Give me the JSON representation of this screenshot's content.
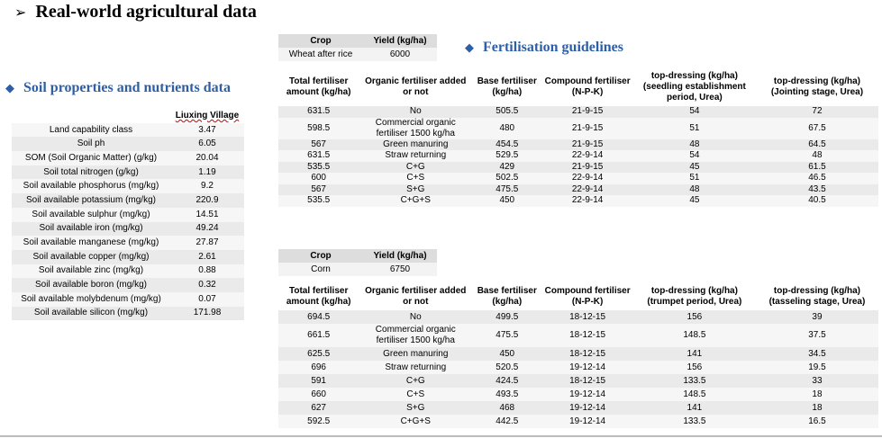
{
  "title": "Real-world agricultural data",
  "soil": {
    "heading": "Soil properties and nutrients data",
    "column": "Liuxing Village",
    "rows": [
      {
        "label": "Land capability class",
        "value": "3.47"
      },
      {
        "label": "Soil ph",
        "value": "6.05"
      },
      {
        "label": "SOM (Soil Organic Matter) (g/kg)",
        "value": "20.04"
      },
      {
        "label": "Soil total nitrogen (g/kg)",
        "value": "1.19"
      },
      {
        "label": "Soil available phosphorus (mg/kg)",
        "value": "9.2"
      },
      {
        "label": "Soil available potassium (mg/kg)",
        "value": "220.9"
      },
      {
        "label": "Soil available sulphur (mg/kg)",
        "value": "14.51"
      },
      {
        "label": "Soil available iron (mg/kg)",
        "value": "49.24"
      },
      {
        "label": "Soil available manganese (mg/kg)",
        "value": "27.87"
      },
      {
        "label": "Soil available copper (mg/kg)",
        "value": "2.61"
      },
      {
        "label": "Soil available zinc (mg/kg)",
        "value": "0.88"
      },
      {
        "label": "Soil available boron (mg/kg)",
        "value": "0.32"
      },
      {
        "label": "Soil available molybdenum (mg/kg)",
        "value": "0.07"
      },
      {
        "label": "Soil available silicon (mg/kg)",
        "value": "171.98"
      }
    ]
  },
  "fert": {
    "heading": "Fertilisation guidelines",
    "wheat": {
      "crop_header": "Crop",
      "yield_header": "Yield (kg/ha)",
      "crop": "Wheat after rice",
      "yield": "6000",
      "headers": [
        "Total fertiliser amount (kg/ha)",
        "Organic fertiliser added or not",
        "Base fertiliser (kg/ha)",
        "Compound fertiliser (N-P-K)",
        "top-dressing (kg/ha) (seedling establishment period, Urea)",
        "top-dressing (kg/ha) (Jointing stage, Urea)"
      ],
      "rows": [
        [
          "631.5",
          "No",
          "505.5",
          "21-9-15",
          "54",
          "72"
        ],
        [
          "598.5",
          "Commercial organic fertiliser 1500 kg/ha",
          "480",
          "21-9-15",
          "51",
          "67.5"
        ],
        [
          "567",
          "Green manuring",
          "454.5",
          "21-9-15",
          "48",
          "64.5"
        ],
        [
          "631.5",
          "Straw returning",
          "529.5",
          "22-9-14",
          "54",
          "48"
        ],
        [
          "535.5",
          "C+G",
          "429",
          "21-9-15",
          "45",
          "61.5"
        ],
        [
          "600",
          "C+S",
          "502.5",
          "22-9-14",
          "51",
          "46.5"
        ],
        [
          "567",
          "S+G",
          "475.5",
          "22-9-14",
          "48",
          "43.5"
        ],
        [
          "535.5",
          "C+G+S",
          "450",
          "22-9-14",
          "45",
          "40.5"
        ]
      ]
    },
    "corn": {
      "crop_header": "Crop",
      "yield_header": "Yield (kg/ha)",
      "crop": "Corn",
      "yield": "6750",
      "headers": [
        "Total fertiliser amount (kg/ha)",
        "Organic fertiliser added or not",
        "Base fertiliser (kg/ha)",
        "Compound fertiliser (N-P-K)",
        "top-dressing (kg/ha) (trumpet period, Urea)",
        "top-dressing (kg/ha) (tasseling stage, Urea)"
      ],
      "rows": [
        [
          "694.5",
          "No",
          "499.5",
          "18-12-15",
          "156",
          "39"
        ],
        [
          "661.5",
          "Commercial organic fertiliser 1500 kg/ha",
          "475.5",
          "18-12-15",
          "148.5",
          "37.5"
        ],
        [
          "625.5",
          "Green manuring",
          "450",
          "18-12-15",
          "141",
          "34.5"
        ],
        [
          "696",
          "Straw returning",
          "520.5",
          "19-12-14",
          "156",
          "19.5"
        ],
        [
          "591",
          "C+G",
          "424.5",
          "18-12-15",
          "133.5",
          "33"
        ],
        [
          "660",
          "C+S",
          "493.5",
          "19-12-14",
          "148.5",
          "18"
        ],
        [
          "627",
          "S+G",
          "468",
          "19-12-14",
          "141",
          "18"
        ],
        [
          "592.5",
          "C+G+S",
          "442.5",
          "19-12-14",
          "133.5",
          "16.5"
        ]
      ]
    }
  }
}
